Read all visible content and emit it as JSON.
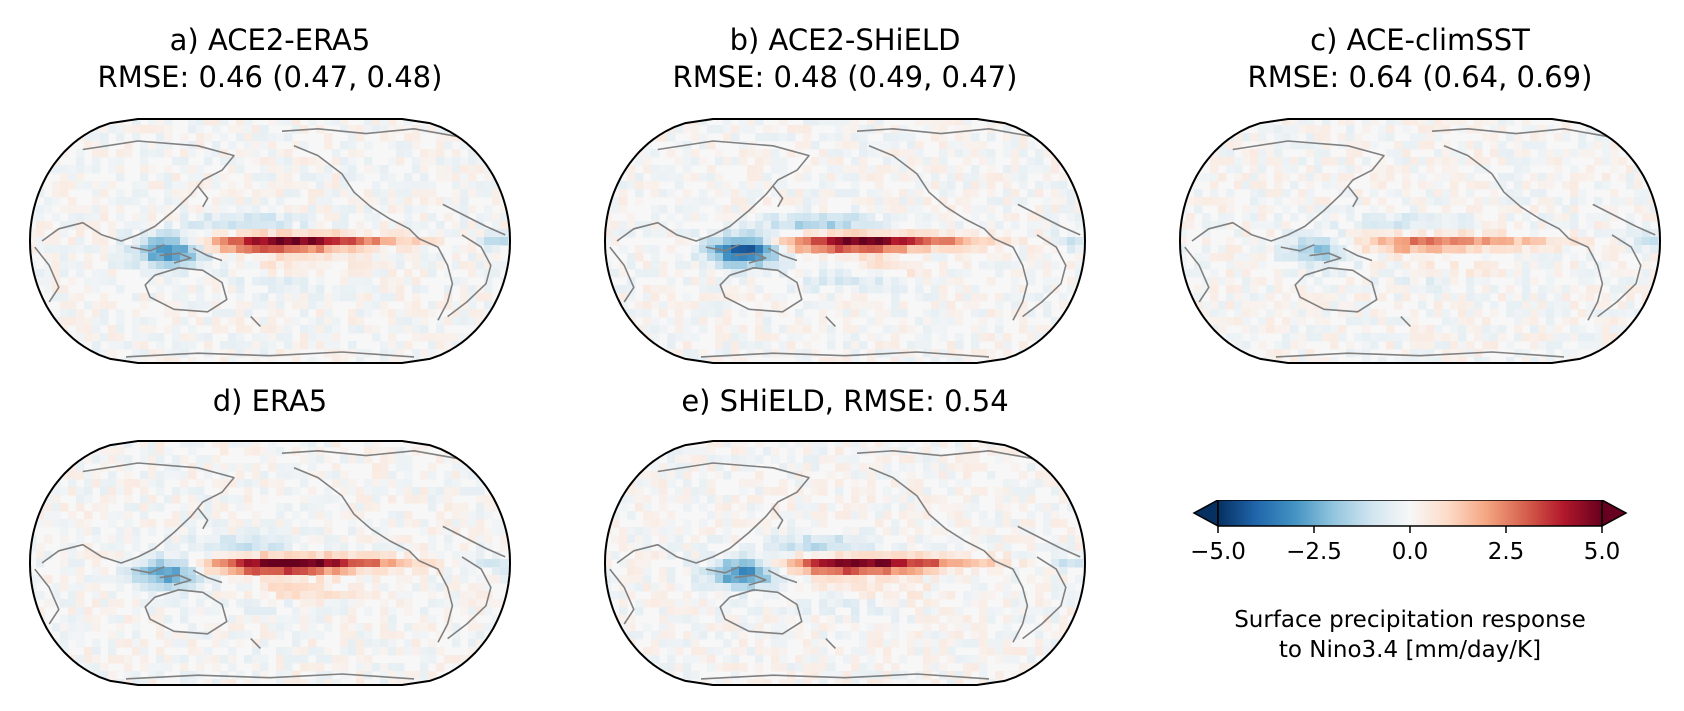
{
  "chart_data": [
    {
      "type": "heatmap",
      "panel": "a",
      "title": "a) ACE2-ERA5",
      "subtitle": "RMSE: 0.46 (0.47, 0.48)",
      "rmse": 0.46,
      "rmse_secondary": [
        0.47,
        0.48
      ],
      "projection": "Robinson, Pacific-centered",
      "pattern": {
        "east_pacific_max": 4.5,
        "maritime_continent_min": -3.5
      }
    },
    {
      "type": "heatmap",
      "panel": "b",
      "title": "b) ACE2-SHiELD",
      "subtitle": "RMSE: 0.48 (0.49, 0.47)",
      "rmse": 0.48,
      "rmse_secondary": [
        0.49,
        0.47
      ],
      "projection": "Robinson, Pacific-centered",
      "pattern": {
        "east_pacific_max": 4.5,
        "maritime_continent_min": -4.5
      }
    },
    {
      "type": "heatmap",
      "panel": "c",
      "title": "c) ACE-climSST",
      "subtitle": "RMSE: 0.64 (0.64, 0.69)",
      "rmse": 0.64,
      "rmse_secondary": [
        0.64,
        0.69
      ],
      "projection": "Robinson, Pacific-centered",
      "pattern": {
        "east_pacific_max": 2.5,
        "maritime_continent_min": -2.0
      }
    },
    {
      "type": "heatmap",
      "panel": "d",
      "title": "d) ERA5",
      "subtitle": "",
      "projection": "Robinson, Pacific-centered",
      "pattern": {
        "east_pacific_max": 5.0,
        "maritime_continent_min": -3.0
      }
    },
    {
      "type": "heatmap",
      "panel": "e",
      "title": "e) SHiELD, RMSE: 0.54",
      "subtitle": "",
      "rmse": 0.54,
      "projection": "Robinson, Pacific-centered",
      "pattern": {
        "east_pacific_max": 4.5,
        "maritime_continent_min": -3.5
      }
    }
  ],
  "colorbar": {
    "colormap": "RdBu_r",
    "range": [
      -5.0,
      5.0
    ],
    "ticks": [
      "−5.0",
      "−2.5",
      "0.0",
      "2.5",
      "5.0"
    ],
    "extend": "both",
    "label_line1": "Surface precipitation response",
    "label_line2": "to Nino3.4 [mm/day/K]",
    "colors": [
      "#053061",
      "#2166ac",
      "#4393c3",
      "#92c5de",
      "#d1e5f0",
      "#f7f7f7",
      "#fddbc7",
      "#f4a582",
      "#d6604d",
      "#b2182b",
      "#67001f"
    ]
  },
  "style": {
    "coastline_color": "#808080",
    "frame_color": "#000000"
  }
}
